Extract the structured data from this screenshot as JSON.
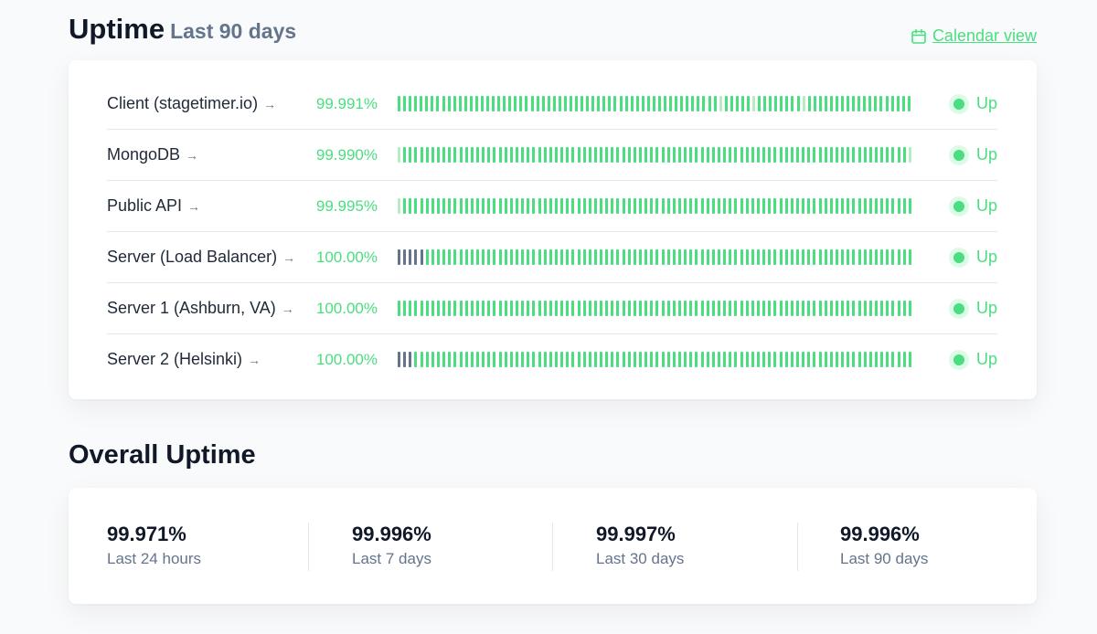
{
  "uptime_section": {
    "title": "Uptime",
    "subtitle": "Last 90 days",
    "calendar_link": "Calendar view"
  },
  "colors": {
    "accent_green": "#4ade80",
    "light_green": "#b7ecc6",
    "no_data_gray": "#64748b"
  },
  "monitors": [
    {
      "name": "Client (stagetimer.io)",
      "uptime": "99.991%",
      "status": "Up",
      "bars": "gggggggggggggggggggggggggggggggggggggggggggggggggggggggggglggggglgggggggglggggggggggggggggggg"
    },
    {
      "name": "MongoDB",
      "uptime": "99.990%",
      "status": "Up",
      "bars": "lggggggggggggggggggggggggggggggggggggggggggggggggggggggggggggggggggggggggggggggggggggggggggl"
    },
    {
      "name": "Public API",
      "uptime": "99.995%",
      "status": "Up",
      "bars": "lggggggggggggggggggggggggggggggggggggggggggggggggggggggggggggggggggggggggggggggggggggggggggg"
    },
    {
      "name": "Server (Load Balancer)",
      "uptime": "100.00%",
      "status": "Up",
      "bars": "xxxxxggggggggggggggggggggggggggggggggggggggggggggggggggggggggggggggggggggggggggggggggggggggg"
    },
    {
      "name": "Server 1 (Ashburn, VA)",
      "uptime": "100.00%",
      "status": "Up",
      "bars": "gggggggggggggggggggggggggggggggggggggggggggggggggggggggggggggggggggggggggggggggggggggggggggg"
    },
    {
      "name": "Server 2 (Helsinki)",
      "uptime": "100.00%",
      "status": "Up",
      "bars": "xxxggggggggggggggggggggggggggggggggggggggggggggggggggggggggggggggggggggggggggggggggggggggggg"
    }
  ],
  "overall_section": {
    "title": "Overall Uptime",
    "stats": [
      {
        "value": "99.971%",
        "label": "Last 24 hours"
      },
      {
        "value": "99.996%",
        "label": "Last 7 days"
      },
      {
        "value": "99.997%",
        "label": "Last 30 days"
      },
      {
        "value": "99.996%",
        "label": "Last 90 days"
      }
    ]
  }
}
